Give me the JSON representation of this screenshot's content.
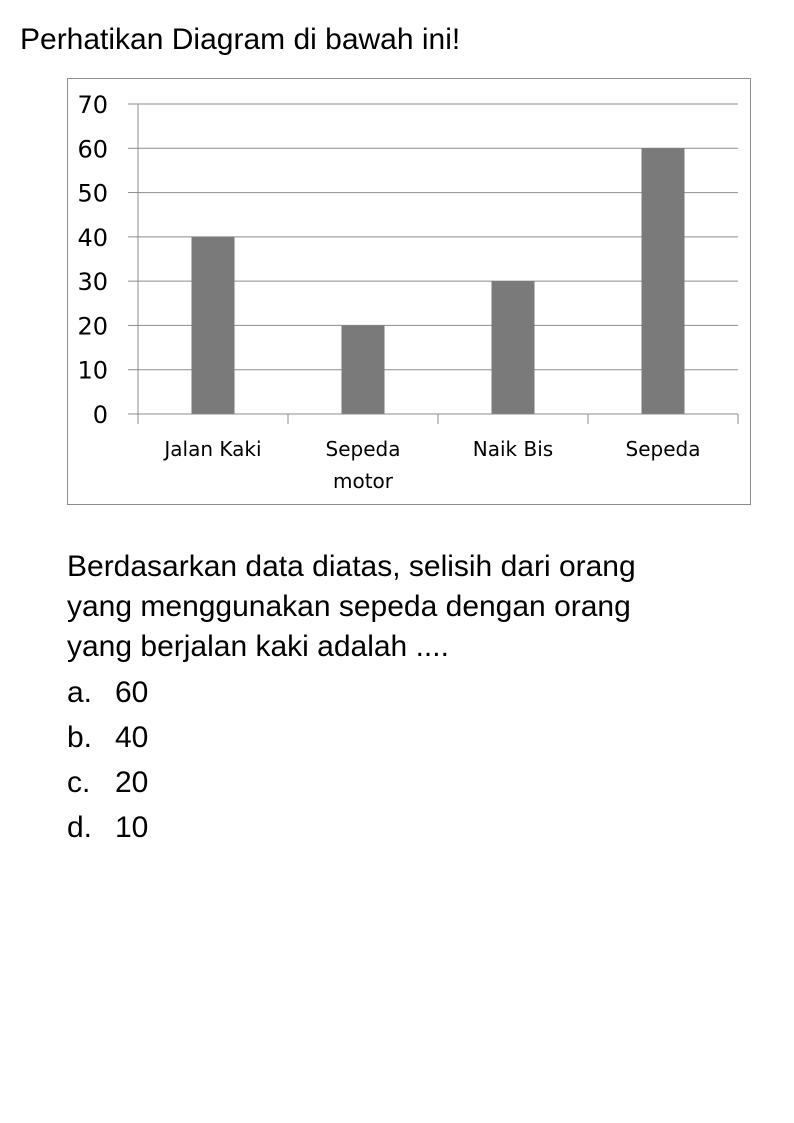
{
  "heading": "Perhatikan Diagram di bawah ini!",
  "question": {
    "lines": [
      "Berdasarkan data diatas, selisih dari orang",
      "yang menggunakan sepeda dengan  orang",
      "yang berjalan kaki  adalah ...."
    ]
  },
  "options": [
    {
      "letter": "a.",
      "text": "60"
    },
    {
      "letter": "b.",
      "text": "40"
    },
    {
      "letter": "c.",
      "text": "20"
    },
    {
      "letter": "d.",
      "text": "10"
    }
  ],
  "chart_data": {
    "type": "bar",
    "categories": [
      [
        "Jalan Kaki"
      ],
      [
        "Sepeda",
        "motor"
      ],
      [
        "Naik Bis"
      ],
      [
        "Sepeda"
      ]
    ],
    "values": [
      40,
      20,
      30,
      60
    ],
    "title": "",
    "xlabel": "",
    "ylabel": "",
    "ylim": [
      0,
      70
    ],
    "yticks": [
      "0",
      "10",
      "20",
      "30",
      "40",
      "50",
      "60",
      "70"
    ],
    "grid": true,
    "legend": "none",
    "bar_color": "#7a7a7a",
    "grid_color": "#8c8c8c"
  }
}
